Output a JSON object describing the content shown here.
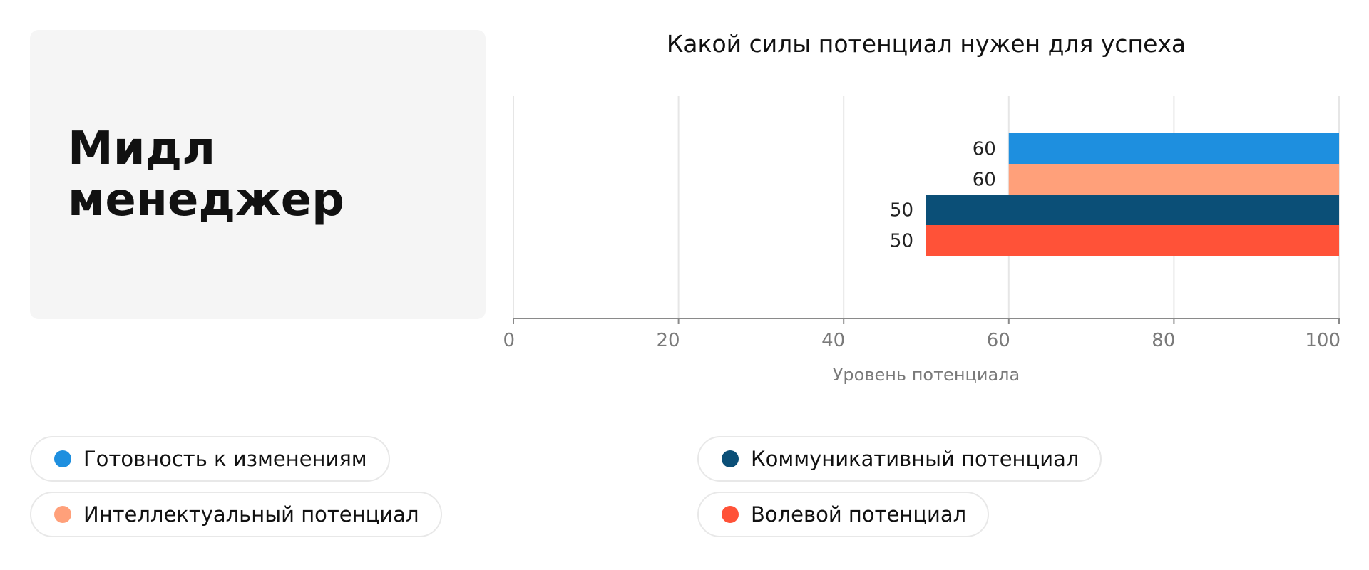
{
  "card": {
    "title": "Мидл менеджер"
  },
  "chart_data": {
    "type": "bar",
    "orientation": "horizontal",
    "title": "Какой силы потенциал нужен для успеха",
    "xlabel": "Уровень потенциала",
    "ylabel": "",
    "xlim": [
      0,
      100
    ],
    "x_ticks": [
      0,
      20,
      40,
      60,
      80,
      100
    ],
    "grid": true,
    "legend_position": "bottom",
    "data_labels": true,
    "series": [
      {
        "name": "Готовность к изменениям",
        "values": [
          60
        ],
        "color": "#1e8fdf"
      },
      {
        "name": "Интеллектуальный потенциал",
        "values": [
          60
        ],
        "color": "#ffa07a"
      },
      {
        "name": "Коммуникативный потенциал",
        "values": [
          50
        ],
        "color": "#0b4f77"
      },
      {
        "name": "Волевой потенциал",
        "values": [
          50
        ],
        "color": "#ff5238"
      }
    ]
  },
  "colors": {
    "card_background": "#f5f5f5",
    "gridline": "#e6e6e6",
    "axis": "#8a8a8a",
    "tick_label": "#7a7a7a",
    "data_label": "#222222"
  }
}
